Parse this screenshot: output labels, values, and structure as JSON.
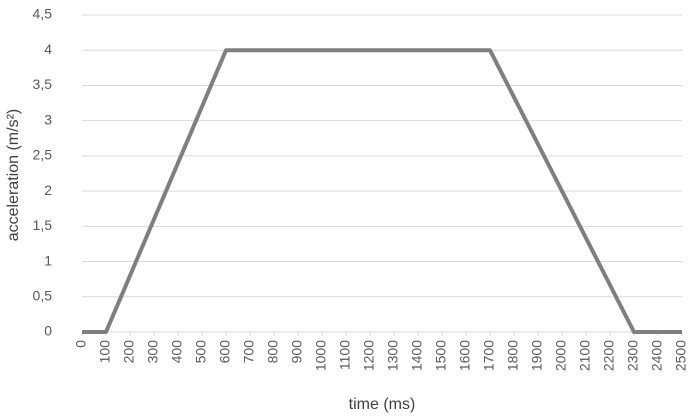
{
  "chart_data": {
    "type": "line",
    "x_label": "time (ms)",
    "y_label": "acceleration (m/s²)",
    "x": [
      0,
      100,
      600,
      1700,
      2300,
      2500
    ],
    "series": [
      {
        "color": "#7f7f7f",
        "values": [
          0,
          0,
          4,
          4,
          0,
          0
        ]
      }
    ],
    "xlim": [
      0,
      2500
    ],
    "xticks": [
      0,
      100,
      200,
      300,
      400,
      500,
      600,
      700,
      800,
      900,
      1000,
      1100,
      1200,
      1300,
      1400,
      1500,
      1600,
      1700,
      1800,
      1900,
      2000,
      2100,
      2200,
      2300,
      2400,
      2500
    ],
    "ylim": [
      0,
      4.5
    ],
    "yticks": [
      0,
      {
        "value": 0.5,
        "label": "0,5"
      },
      1,
      {
        "value": 1.5,
        "label": "1,5"
      },
      2,
      {
        "value": 2.5,
        "label": "2,5"
      },
      3,
      {
        "value": 3.5,
        "label": "3,5"
      },
      4,
      {
        "value": 4.5,
        "label": "4,5"
      }
    ],
    "grid": true
  }
}
